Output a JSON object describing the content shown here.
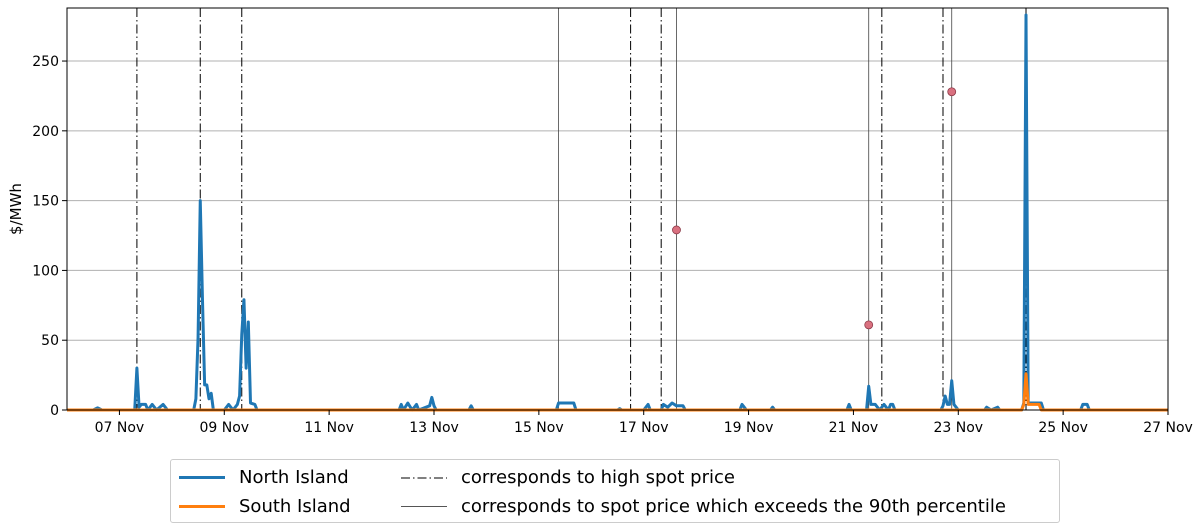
{
  "chart_data": {
    "type": "line",
    "ylabel": "$/MWh",
    "xlabel": "",
    "ylim": [
      0,
      288
    ],
    "xlim": [
      "06 Nov 00:00",
      "27 Nov 00:00"
    ],
    "x_ticks": [
      "07 Nov",
      "09 Nov",
      "11 Nov",
      "13 Nov",
      "15 Nov",
      "17 Nov",
      "19 Nov",
      "21 Nov",
      "23 Nov",
      "25 Nov",
      "27 Nov"
    ],
    "y_ticks": [
      0,
      50,
      100,
      150,
      200,
      250
    ],
    "grid": "horizontal",
    "legend_position": "below",
    "series": [
      {
        "name": "North Island",
        "color": "#1f77b4",
        "points": [
          [
            "06 Nov 00:00",
            0
          ],
          [
            "06 Nov 12:00",
            0
          ],
          [
            "06 Nov 14:00",
            1.5
          ],
          [
            "06 Nov 16:00",
            0
          ],
          [
            "07 Nov 07:00",
            0
          ],
          [
            "07 Nov 08:00",
            30
          ],
          [
            "07 Nov 09:00",
            2
          ],
          [
            "07 Nov 10:00",
            4
          ],
          [
            "07 Nov 12:00",
            4
          ],
          [
            "07 Nov 13:00",
            0
          ],
          [
            "07 Nov 15:00",
            4
          ],
          [
            "07 Nov 17:00",
            0
          ],
          [
            "07 Nov 20:00",
            4
          ],
          [
            "07 Nov 22:00",
            0
          ],
          [
            "08 Nov 10:00",
            0
          ],
          [
            "08 Nov 11:00",
            8
          ],
          [
            "08 Nov 12:00",
            52
          ],
          [
            "08 Nov 13:00",
            150
          ],
          [
            "08 Nov 14:00",
            80
          ],
          [
            "08 Nov 15:00",
            18
          ],
          [
            "08 Nov 16:00",
            18
          ],
          [
            "08 Nov 17:00",
            8
          ],
          [
            "08 Nov 18:00",
            12
          ],
          [
            "08 Nov 19:00",
            0
          ],
          [
            "09 Nov 00:00",
            0
          ],
          [
            "09 Nov 02:00",
            4
          ],
          [
            "09 Nov 04:00",
            0
          ],
          [
            "09 Nov 06:00",
            4
          ],
          [
            "09 Nov 07:00",
            10
          ],
          [
            "09 Nov 08:00",
            54
          ],
          [
            "09 Nov 09:00",
            79
          ],
          [
            "09 Nov 10:00",
            30
          ],
          [
            "09 Nov 11:00",
            63
          ],
          [
            "09 Nov 12:00",
            5
          ],
          [
            "09 Nov 14:00",
            4
          ],
          [
            "09 Nov 15:00",
            0
          ],
          [
            "12 Nov 08:00",
            0
          ],
          [
            "12 Nov 09:00",
            4
          ],
          [
            "12 Nov 10:00",
            0
          ],
          [
            "12 Nov 12:00",
            5
          ],
          [
            "12 Nov 14:00",
            0
          ],
          [
            "12 Nov 16:00",
            4
          ],
          [
            "12 Nov 17:00",
            0
          ],
          [
            "12 Nov 22:00",
            3
          ],
          [
            "12 Nov 23:00",
            9
          ],
          [
            "13 Nov 00:00",
            3
          ],
          [
            "13 Nov 01:00",
            0
          ],
          [
            "13 Nov 16:00",
            0
          ],
          [
            "13 Nov 17:00",
            3
          ],
          [
            "13 Nov 18:00",
            0
          ],
          [
            "15 Nov 08:00",
            0
          ],
          [
            "15 Nov 09:00",
            5
          ],
          [
            "15 Nov 16:00",
            5
          ],
          [
            "15 Nov 17:00",
            0
          ],
          [
            "16 Nov 12:00",
            0
          ],
          [
            "16 Nov 13:00",
            1
          ],
          [
            "16 Nov 14:00",
            0
          ],
          [
            "17 Nov 00:00",
            0
          ],
          [
            "17 Nov 02:00",
            4
          ],
          [
            "17 Nov 03:00",
            0
          ],
          [
            "17 Nov 08:00",
            0
          ],
          [
            "17 Nov 09:00",
            4
          ],
          [
            "17 Nov 11:00",
            2
          ],
          [
            "17 Nov 13:00",
            5
          ],
          [
            "17 Nov 15:00",
            3
          ],
          [
            "17 Nov 18:00",
            3
          ],
          [
            "17 Nov 19:00",
            0
          ],
          [
            "18 Nov 20:00",
            0
          ],
          [
            "18 Nov 21:00",
            4
          ],
          [
            "18 Nov 22:00",
            2
          ],
          [
            "18 Nov 23:00",
            0
          ],
          [
            "19 Nov 10:00",
            0
          ],
          [
            "19 Nov 11:00",
            2
          ],
          [
            "19 Nov 12:00",
            0
          ],
          [
            "20 Nov 21:00",
            0
          ],
          [
            "20 Nov 22:00",
            4
          ],
          [
            "20 Nov 23:00",
            0
          ],
          [
            "21 Nov 06:00",
            0
          ],
          [
            "21 Nov 07:00",
            17
          ],
          [
            "21 Nov 08:00",
            4
          ],
          [
            "21 Nov 10:00",
            4
          ],
          [
            "21 Nov 12:00",
            0
          ],
          [
            "21 Nov 14:00",
            4
          ],
          [
            "21 Nov 16:00",
            0
          ],
          [
            "21 Nov 17:00",
            4
          ],
          [
            "21 Nov 18:00",
            4
          ],
          [
            "21 Nov 19:00",
            0
          ],
          [
            "22 Nov 16:00",
            0
          ],
          [
            "22 Nov 17:00",
            3
          ],
          [
            "22 Nov 18:00",
            10
          ],
          [
            "22 Nov 19:00",
            4
          ],
          [
            "22 Nov 20:00",
            4
          ],
          [
            "22 Nov 21:00",
            21
          ],
          [
            "22 Nov 22:00",
            4
          ],
          [
            "22 Nov 23:00",
            2
          ],
          [
            "23 Nov 00:00",
            0
          ],
          [
            "23 Nov 12:00",
            0
          ],
          [
            "23 Nov 13:00",
            2
          ],
          [
            "23 Nov 15:00",
            0
          ],
          [
            "23 Nov 18:00",
            2
          ],
          [
            "23 Nov 19:00",
            0
          ],
          [
            "24 Nov 05:00",
            0
          ],
          [
            "24 Nov 06:00",
            5
          ],
          [
            "24 Nov 07:00",
            283
          ],
          [
            "24 Nov 08:00",
            5
          ],
          [
            "24 Nov 14:00",
            5
          ],
          [
            "24 Nov 15:00",
            0
          ],
          [
            "25 Nov 08:00",
            0
          ],
          [
            "25 Nov 09:00",
            4
          ],
          [
            "25 Nov 11:00",
            4
          ],
          [
            "25 Nov 12:00",
            0
          ],
          [
            "27 Nov 00:00",
            0
          ]
        ]
      },
      {
        "name": "South Island",
        "color": "#ff7f0e",
        "points": [
          [
            "06 Nov 00:00",
            0
          ],
          [
            "24 Nov 05:00",
            0
          ],
          [
            "24 Nov 06:00",
            4
          ],
          [
            "24 Nov 07:00",
            26
          ],
          [
            "24 Nov 08:00",
            4
          ],
          [
            "24 Nov 13:00",
            4
          ],
          [
            "24 Nov 14:00",
            0
          ],
          [
            "27 Nov 00:00",
            0
          ]
        ]
      }
    ],
    "markers": [
      {
        "x": "17 Nov 15:00",
        "y": 129
      },
      {
        "x": "21 Nov 07:00",
        "y": 61
      },
      {
        "x": "22 Nov 21:00",
        "y": 228
      }
    ],
    "high_spot_price_lines": [
      "07 Nov 08:00",
      "08 Nov 13:00",
      "09 Nov 08:00",
      "16 Nov 18:00",
      "17 Nov 08:00",
      "21 Nov 13:00",
      "22 Nov 17:00",
      "24 Nov 07:00"
    ],
    "percentile90_lines": [
      "15 Nov 09:00",
      "17 Nov 15:00",
      "21 Nov 07:00",
      "22 Nov 21:00"
    ]
  },
  "legend": {
    "north_label": "North Island",
    "south_label": "South Island",
    "high_label": "corresponds to high spot price",
    "pct_label": "corresponds to spot price which exceeds the 90th percentile"
  }
}
